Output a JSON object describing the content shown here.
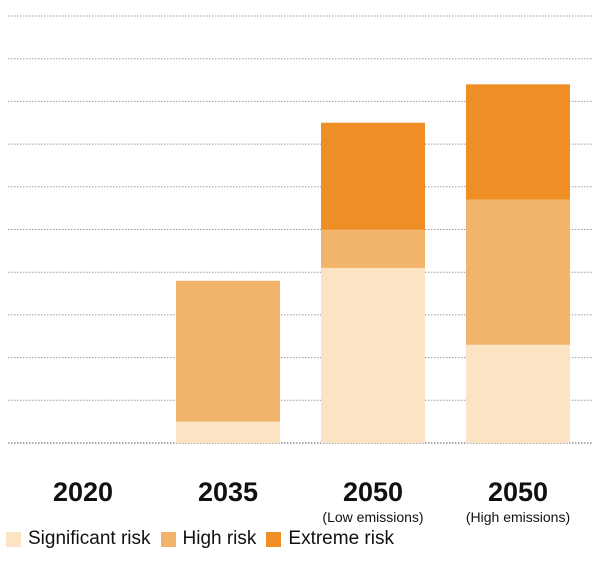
{
  "chart_data": {
    "type": "bar",
    "stacked": true,
    "categories": [
      {
        "label": "2020",
        "sublabel": ""
      },
      {
        "label": "2035",
        "sublabel": ""
      },
      {
        "label": "2050",
        "sublabel": "(Low emissions)"
      },
      {
        "label": "2050",
        "sublabel": "(High emissions)"
      }
    ],
    "series": [
      {
        "name": "Significant risk",
        "color": "#fbe3c3",
        "values": [
          0,
          0.5,
          4.1,
          2.3
        ]
      },
      {
        "name": "High risk",
        "color": "#f2b46a",
        "values": [
          0,
          3.3,
          0.9,
          3.4
        ]
      },
      {
        "name": "Extreme risk",
        "color": "#ee8e24",
        "values": [
          0,
          0,
          2.5,
          2.7
        ]
      }
    ],
    "ylim": [
      0,
      10
    ],
    "y_gridlines": 10,
    "grid": true,
    "legend_position": "bottom-left",
    "title": "",
    "xlabel": "",
    "ylabel": ""
  }
}
